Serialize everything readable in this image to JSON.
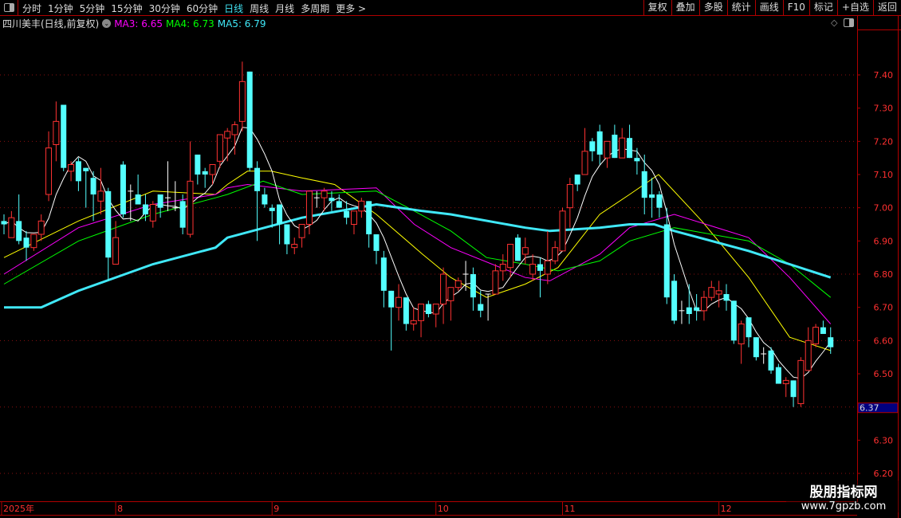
{
  "topbar": {
    "periods": [
      "分时",
      "1分钟",
      "5分钟",
      "15分钟",
      "30分钟",
      "60分钟",
      "日线",
      "周线",
      "月线",
      "多周期",
      "更多 >"
    ],
    "active_period": "日线",
    "buttons": [
      "复权",
      "叠加",
      "多股",
      "统计",
      "画线",
      "F10",
      "标记",
      "+自选",
      "返回"
    ]
  },
  "title": {
    "stock": "四川美丰(日线,前复权)",
    "ma3": "MA3: 6.65",
    "ma4": "MA4: 6.73",
    "ma5": "MA5: 6.79"
  },
  "colors": {
    "up": "#ff3232",
    "down": "#54ffff",
    "flat": "#ffffff",
    "ma1": "#ffffff",
    "ma2": "#ffff00",
    "ma3": "#ff00ff",
    "ma4": "#00ff00",
    "ma5": "#40e8f8",
    "axis": "#b00000",
    "label": "#ff3030"
  },
  "watermark": {
    "line1": "股朋指标网",
    "line2": "www.7gpzb.com"
  },
  "chart_data": {
    "type": "candlestick",
    "ylim": [
      6.2,
      7.45
    ],
    "yticks": [
      "7.40",
      "7.30",
      "7.20",
      "7.10",
      "7.00",
      "6.90",
      "6.80",
      "6.70",
      "6.60",
      "6.50",
      "6.30",
      "6.20"
    ],
    "grid_values": [
      7.4,
      7.2,
      7.0,
      6.8,
      6.6,
      6.4,
      6.2
    ],
    "current_price_label": "6.37",
    "x_labels": [
      {
        "index": 0,
        "text": "2025年"
      },
      {
        "index": 15,
        "text": "8"
      },
      {
        "index": 36,
        "text": "9"
      },
      {
        "index": 58,
        "text": "10"
      },
      {
        "index": 75,
        "text": "11"
      },
      {
        "index": 96,
        "text": "12"
      }
    ],
    "candles_ochl": [
      [
        6.96,
        6.95,
        6.98,
        6.92
      ],
      [
        6.91,
        6.97,
        6.99,
        6.91
      ],
      [
        6.96,
        6.9,
        7.04,
        6.89
      ],
      [
        6.91,
        6.88,
        6.93,
        6.84
      ],
      [
        6.88,
        6.92,
        6.92,
        6.87
      ],
      [
        6.92,
        6.96,
        6.98,
        6.9
      ],
      [
        7.04,
        7.18,
        7.23,
        7.02
      ],
      [
        7.19,
        7.26,
        7.32,
        7.14
      ],
      [
        7.31,
        7.12,
        7.31,
        7.11
      ],
      [
        7.11,
        7.13,
        7.14,
        7.08
      ],
      [
        7.14,
        7.08,
        7.15,
        7.05
      ],
      [
        7.12,
        7.11,
        7.12,
        7.0
      ],
      [
        7.09,
        7.04,
        7.11,
        6.96
      ],
      [
        7.02,
        7.05,
        7.12,
        6.98
      ],
      [
        7.05,
        6.85,
        7.06,
        6.78
      ],
      [
        6.83,
        6.91,
        6.96,
        6.83
      ],
      [
        7.13,
        6.98,
        7.14,
        6.97
      ],
      [
        7.05,
        7.05,
        7.07,
        6.96
      ],
      [
        7.04,
        7.01,
        7.1,
        7.01
      ],
      [
        7.01,
        6.98,
        7.04,
        6.96
      ],
      [
        6.96,
        7.01,
        7.02,
        6.94
      ],
      [
        7.04,
        7.0,
        7.04,
        6.97
      ],
      [
        7.03,
        7.03,
        7.14,
        6.99
      ],
      [
        7.0,
        7.0,
        7.08,
        6.99
      ],
      [
        7.02,
        6.94,
        7.04,
        6.92
      ],
      [
        6.92,
        7.08,
        7.2,
        6.91
      ],
      [
        7.16,
        7.1,
        7.16,
        7.07
      ],
      [
        7.11,
        7.1,
        7.12,
        7.06
      ],
      [
        7.1,
        7.13,
        7.13,
        7.07
      ],
      [
        7.14,
        7.22,
        7.22,
        7.12
      ],
      [
        7.21,
        7.23,
        7.24,
        7.14
      ],
      [
        7.22,
        7.25,
        7.26,
        7.16
      ],
      [
        7.26,
        7.38,
        7.44,
        7.23
      ],
      [
        7.41,
        7.12,
        7.41,
        7.11
      ],
      [
        7.12,
        7.05,
        7.14,
        6.9
      ],
      [
        7.04,
        7.01,
        7.06,
        7.0
      ],
      [
        7.0,
        6.99,
        7.01,
        6.94
      ],
      [
        7.01,
        6.95,
        7.01,
        6.89
      ],
      [
        6.95,
        6.89,
        6.95,
        6.86
      ],
      [
        6.88,
        6.89,
        6.91,
        6.86
      ],
      [
        6.91,
        6.95,
        6.95,
        6.88
      ],
      [
        6.95,
        7.05,
        7.05,
        6.92
      ],
      [
        7.03,
        7.03,
        7.05,
        7.0
      ],
      [
        7.03,
        7.05,
        7.06,
        6.99
      ],
      [
        7.03,
        7.02,
        7.05,
        6.99
      ],
      [
        7.02,
        7.0,
        7.04,
        7.0
      ],
      [
        6.99,
        6.97,
        7.02,
        6.95
      ],
      [
        6.95,
        6.99,
        6.99,
        6.92
      ],
      [
        6.99,
        7.02,
        7.03,
        6.97
      ],
      [
        7.02,
        6.92,
        7.02,
        6.88
      ],
      [
        6.92,
        6.87,
        6.92,
        6.83
      ],
      [
        6.85,
        6.75,
        6.87,
        6.7
      ],
      [
        6.75,
        6.7,
        6.75,
        6.57
      ],
      [
        6.7,
        6.73,
        6.77,
        6.66
      ],
      [
        6.73,
        6.65,
        6.73,
        6.63
      ],
      [
        6.65,
        6.66,
        6.7,
        6.63
      ],
      [
        6.66,
        6.71,
        6.71,
        6.61
      ],
      [
        6.71,
        6.68,
        6.72,
        6.67
      ],
      [
        6.68,
        6.71,
        6.71,
        6.64
      ],
      [
        6.71,
        6.8,
        6.82,
        6.65
      ],
      [
        6.72,
        6.76,
        6.76,
        6.66
      ],
      [
        6.76,
        6.78,
        6.79,
        6.75
      ],
      [
        6.8,
        6.8,
        6.84,
        6.75
      ],
      [
        6.8,
        6.73,
        6.82,
        6.69
      ],
      [
        6.71,
        6.69,
        6.75,
        6.67
      ],
      [
        6.74,
        6.74,
        6.74,
        6.66
      ],
      [
        6.74,
        6.81,
        6.83,
        6.74
      ],
      [
        6.81,
        6.83,
        6.86,
        6.78
      ],
      [
        6.82,
        6.89,
        6.89,
        6.79
      ],
      [
        6.91,
        6.84,
        6.92,
        6.84
      ],
      [
        6.86,
        6.88,
        6.91,
        6.83
      ],
      [
        6.8,
        6.83,
        6.86,
        6.78
      ],
      [
        6.83,
        6.81,
        6.85,
        6.73
      ],
      [
        6.8,
        6.84,
        6.93,
        6.77
      ],
      [
        6.84,
        6.88,
        6.9,
        6.83
      ],
      [
        6.87,
        6.99,
        7.0,
        6.87
      ],
      [
        7.0,
        7.07,
        7.09,
        6.94
      ],
      [
        7.1,
        7.07,
        7.1,
        7.05
      ],
      [
        7.1,
        7.17,
        7.24,
        7.1
      ],
      [
        7.2,
        7.17,
        7.21,
        7.14
      ],
      [
        7.23,
        7.16,
        7.25,
        7.13
      ],
      [
        7.15,
        7.2,
        7.2,
        7.12
      ],
      [
        7.22,
        7.15,
        7.25,
        7.15
      ],
      [
        7.15,
        7.21,
        7.24,
        7.15
      ],
      [
        7.21,
        7.15,
        7.25,
        7.15
      ],
      [
        7.15,
        7.14,
        7.18,
        7.1
      ],
      [
        7.11,
        7.03,
        7.16,
        6.98
      ],
      [
        7.04,
        7.03,
        7.09,
        6.97
      ],
      [
        7.04,
        7.0,
        7.05,
        6.97
      ],
      [
        6.95,
        6.73,
        7.0,
        6.71
      ],
      [
        6.78,
        6.66,
        6.8,
        6.65
      ],
      [
        6.69,
        6.69,
        6.72,
        6.65
      ],
      [
        6.7,
        6.68,
        6.77,
        6.65
      ],
      [
        6.7,
        6.69,
        6.74,
        6.66
      ],
      [
        6.69,
        6.73,
        6.75,
        6.66
      ],
      [
        6.73,
        6.76,
        6.78,
        6.72
      ],
      [
        6.74,
        6.75,
        6.78,
        6.7
      ],
      [
        6.74,
        6.72,
        6.77,
        6.69
      ],
      [
        6.72,
        6.6,
        6.72,
        6.59
      ],
      [
        6.59,
        6.65,
        6.66,
        6.53
      ],
      [
        6.67,
        6.61,
        6.67,
        6.58
      ],
      [
        6.61,
        6.55,
        6.61,
        6.54
      ],
      [
        6.56,
        6.56,
        6.58,
        6.53
      ],
      [
        6.57,
        6.51,
        6.58,
        6.5
      ],
      [
        6.52,
        6.47,
        6.53,
        6.47
      ],
      [
        6.47,
        6.48,
        6.49,
        6.43
      ],
      [
        6.48,
        6.43,
        6.48,
        6.4
      ],
      [
        6.41,
        6.54,
        6.55,
        6.4
      ],
      [
        6.51,
        6.6,
        6.64,
        6.51
      ],
      [
        6.59,
        6.64,
        6.65,
        6.58
      ],
      [
        6.64,
        6.62,
        6.66,
        6.62
      ],
      [
        6.61,
        6.58,
        6.64,
        6.56
      ]
    ],
    "ma_lines": [
      {
        "key": "ma2",
        "points": [
          [
            0,
            6.85
          ],
          [
            10,
            6.96
          ],
          [
            20,
            7.05
          ],
          [
            28.4,
            7.04
          ],
          [
            30,
            7.07
          ],
          [
            32.7,
            7.11
          ],
          [
            35.9,
            7.11
          ],
          [
            40,
            7.09
          ],
          [
            44.4,
            7.07
          ],
          [
            50,
            6.98
          ],
          [
            56.2,
            6.86
          ],
          [
            60,
            6.79
          ],
          [
            64.8,
            6.73
          ],
          [
            70,
            6.77
          ],
          [
            74.4,
            6.82
          ],
          [
            80,
            6.98
          ],
          [
            84,
            7.04
          ],
          [
            87.9,
            7.1
          ],
          [
            93.7,
            6.96
          ],
          [
            100,
            6.79
          ],
          [
            105.5,
            6.61
          ],
          [
            111,
            6.57
          ]
        ]
      },
      {
        "key": "ma3",
        "points": [
          [
            0,
            6.8
          ],
          [
            10,
            6.94
          ],
          [
            20,
            7.01
          ],
          [
            28.4,
            7.04
          ],
          [
            30,
            7.06
          ],
          [
            32.7,
            7.07
          ],
          [
            40,
            7.05
          ],
          [
            50,
            7.06
          ],
          [
            55.1,
            6.95
          ],
          [
            60,
            6.88
          ],
          [
            70,
            6.79
          ],
          [
            73.3,
            6.78
          ],
          [
            80,
            6.86
          ],
          [
            84,
            6.94
          ],
          [
            90,
            6.98
          ],
          [
            100,
            6.91
          ],
          [
            105.5,
            6.79
          ],
          [
            111,
            6.65
          ]
        ]
      },
      {
        "key": "ma4",
        "points": [
          [
            0,
            6.77
          ],
          [
            10,
            6.9
          ],
          [
            20,
            6.98
          ],
          [
            28.4,
            7.03
          ],
          [
            30,
            7.04
          ],
          [
            34.8,
            7.08
          ],
          [
            40,
            7.04
          ],
          [
            50,
            7.05
          ],
          [
            55.1,
            6.99
          ],
          [
            60,
            6.93
          ],
          [
            64.8,
            6.85
          ],
          [
            70,
            6.83
          ],
          [
            74.4,
            6.81
          ],
          [
            80,
            6.84
          ],
          [
            84,
            6.9
          ],
          [
            90,
            6.94
          ],
          [
            100,
            6.9
          ],
          [
            105.5,
            6.83
          ],
          [
            111,
            6.73
          ]
        ]
      },
      {
        "key": "ma5",
        "points": [
          [
            0,
            6.7
          ],
          [
            5,
            6.7
          ],
          [
            10,
            6.75
          ],
          [
            20,
            6.83
          ],
          [
            28.4,
            6.88
          ],
          [
            30,
            6.91
          ],
          [
            40,
            6.97
          ],
          [
            50,
            7.01
          ],
          [
            56.2,
            6.99
          ],
          [
            60,
            6.98
          ],
          [
            70,
            6.94
          ],
          [
            73.3,
            6.93
          ],
          [
            80,
            6.94
          ],
          [
            84,
            6.95
          ],
          [
            87.3,
            6.95
          ],
          [
            90,
            6.93
          ],
          [
            100,
            6.87
          ],
          [
            111,
            6.79
          ]
        ]
      }
    ]
  }
}
